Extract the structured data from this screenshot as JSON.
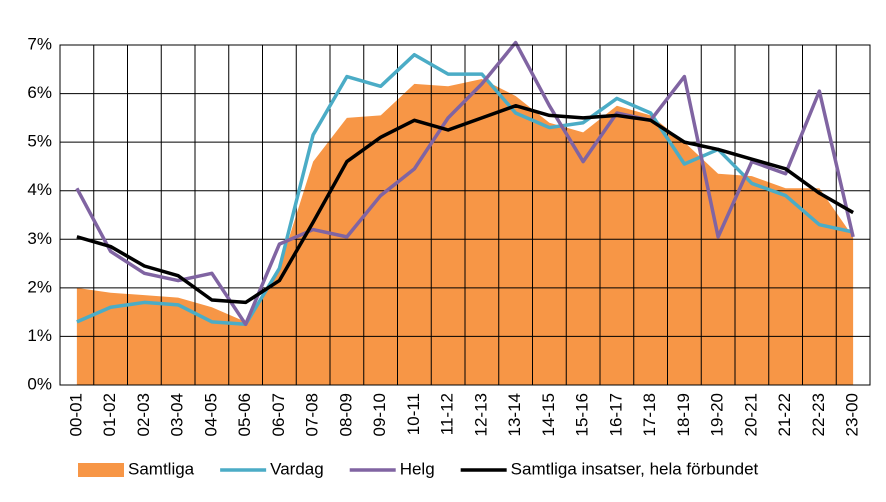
{
  "chart_data": {
    "type": "line",
    "categories": [
      "00-01",
      "01-02",
      "02-03",
      "03-04",
      "04-05",
      "05-06",
      "06-07",
      "07-08",
      "08-09",
      "09-10",
      "10-11",
      "11-12",
      "12-13",
      "13-14",
      "14-15",
      "15-16",
      "16-17",
      "17-18",
      "18-19",
      "19-20",
      "20-21",
      "21-22",
      "22-23",
      "23-00"
    ],
    "series": [
      {
        "name": "Samtliga",
        "color": "#f79646",
        "type": "area",
        "values": [
          2.0,
          1.9,
          1.85,
          1.8,
          1.6,
          1.3,
          2.4,
          4.6,
          5.5,
          5.55,
          6.2,
          6.15,
          6.3,
          5.95,
          5.4,
          5.2,
          5.75,
          5.55,
          5.0,
          4.35,
          4.3,
          4.05,
          4.05,
          3.05
        ]
      },
      {
        "name": "Vardag",
        "color": "#4bacc6",
        "type": "line",
        "values": [
          1.3,
          1.6,
          1.7,
          1.65,
          1.3,
          1.25,
          2.4,
          5.15,
          6.35,
          6.15,
          6.8,
          6.4,
          6.4,
          5.6,
          5.3,
          5.4,
          5.9,
          5.6,
          4.55,
          4.85,
          4.15,
          3.9,
          3.3,
          3.15
        ]
      },
      {
        "name": "Helg",
        "color": "#8064a2",
        "type": "line",
        "values": [
          4.05,
          2.75,
          2.3,
          2.15,
          2.3,
          1.25,
          2.9,
          3.2,
          3.05,
          3.9,
          4.45,
          5.5,
          6.2,
          7.05,
          5.75,
          4.6,
          5.6,
          5.45,
          6.35,
          3.05,
          4.6,
          4.35,
          6.05,
          3.05
        ]
      },
      {
        "name": "Samtliga insatser, hela förbundet",
        "color": "#000000",
        "type": "line",
        "values": [
          3.05,
          2.85,
          2.45,
          2.25,
          1.75,
          1.7,
          2.15,
          3.35,
          4.6,
          5.1,
          5.45,
          5.25,
          5.5,
          5.75,
          5.55,
          5.5,
          5.55,
          5.45,
          5.0,
          4.85,
          4.65,
          4.45,
          3.95,
          3.55
        ]
      }
    ],
    "ylim": [
      0,
      7
    ],
    "yticks": [
      {
        "value": 0,
        "label": "0%"
      },
      {
        "value": 1,
        "label": "1%"
      },
      {
        "value": 2,
        "label": "2%"
      },
      {
        "value": 3,
        "label": "3%"
      },
      {
        "value": 4,
        "label": "4%"
      },
      {
        "value": 5,
        "label": "5%"
      },
      {
        "value": 6,
        "label": "6%"
      },
      {
        "value": 7,
        "label": "7%"
      }
    ],
    "grid": true,
    "legend": "bottom"
  }
}
